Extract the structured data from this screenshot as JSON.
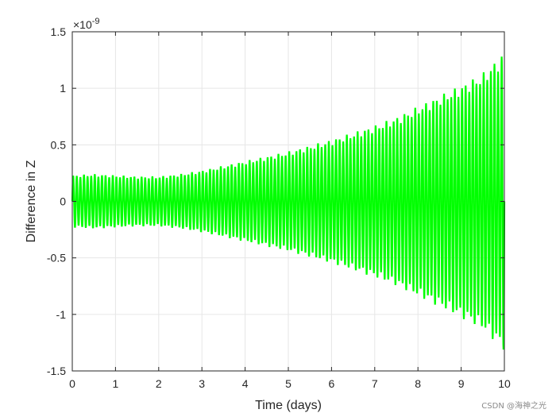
{
  "chart_data": {
    "type": "line",
    "title": "",
    "xlabel": "Time (days)",
    "ylabel": "Difference in Z",
    "xlim": [
      0,
      10
    ],
    "ylim": [
      -1.5,
      1.5
    ],
    "y_multiplier": "×10",
    "y_exponent": "-9",
    "xticks": [
      0,
      1,
      2,
      3,
      4,
      5,
      6,
      7,
      8,
      9,
      10
    ],
    "yticks": [
      -1.5,
      -1,
      -0.5,
      0,
      0.5,
      1,
      1.5
    ],
    "xtick_labels": [
      "0",
      "1",
      "2",
      "3",
      "4",
      "5",
      "6",
      "7",
      "8",
      "9",
      "10"
    ],
    "ytick_labels": [
      "-1.5",
      "-1",
      "-0.5",
      "0",
      "0.5",
      "1",
      "1.5"
    ],
    "grid": true,
    "box": true,
    "legend": "none",
    "line_color": "#00ff00",
    "series": [
      {
        "oscillation_cycles": 120,
        "envelope": {
          "x": [
            0,
            0.5,
            1,
            1.5,
            2,
            2.5,
            3,
            3.5,
            4,
            4.5,
            5,
            5.5,
            6,
            6.5,
            7,
            7.5,
            8,
            8.5,
            9,
            9.5,
            10
          ],
          "amplitude": [
            0.22,
            0.23,
            0.22,
            0.21,
            0.21,
            0.23,
            0.26,
            0.3,
            0.34,
            0.38,
            0.42,
            0.47,
            0.52,
            0.58,
            0.64,
            0.71,
            0.8,
            0.89,
            0.98,
            1.08,
            1.26
          ]
        }
      }
    ]
  },
  "watermark": "CSDN @海神之光"
}
